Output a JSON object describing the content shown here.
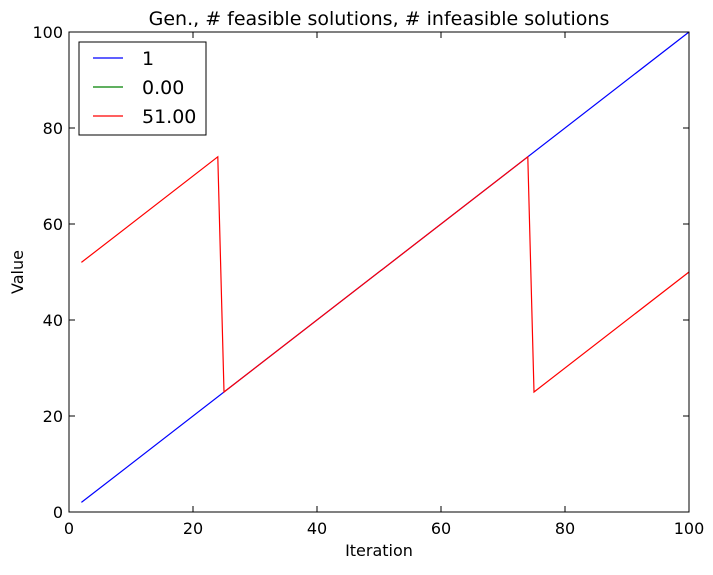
{
  "chart_data": {
    "type": "line",
    "title": "Gen., # feasible solutions, # infeasible solutions",
    "xlabel": "Iteration",
    "ylabel": "Value",
    "xlim": [
      0,
      100
    ],
    "ylim": [
      0,
      100
    ],
    "xticks": [
      0,
      20,
      40,
      60,
      80,
      100
    ],
    "yticks": [
      0,
      20,
      40,
      60,
      80,
      100
    ],
    "grid": false,
    "legend_position": "top-left",
    "series": [
      {
        "name": "1",
        "color": "#0000ff",
        "x": [
          2,
          100
        ],
        "y": [
          2,
          100
        ]
      },
      {
        "name": "0.00",
        "color": "#008000",
        "x": [],
        "y": []
      },
      {
        "name": "51.00",
        "color": "#ff0000",
        "x": [
          2,
          24,
          25,
          74,
          75,
          100
        ],
        "y": [
          52,
          74,
          25,
          74,
          25,
          50
        ]
      }
    ]
  }
}
